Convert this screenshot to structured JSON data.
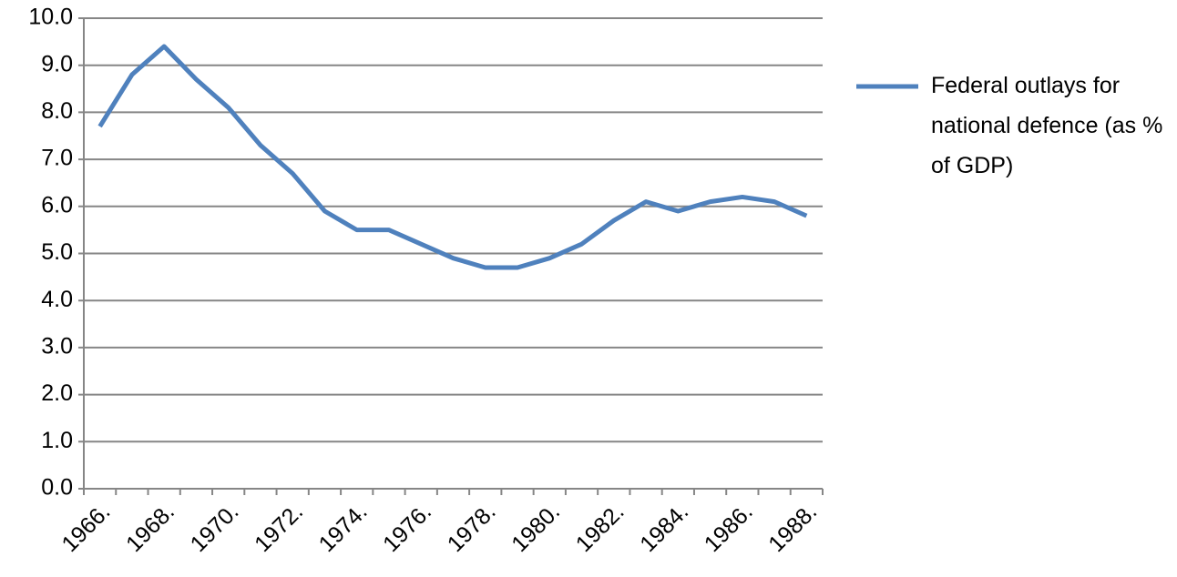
{
  "chart_data": {
    "type": "line",
    "categories": [
      "1966.",
      null,
      "1968.",
      null,
      "1970.",
      null,
      "1972.",
      null,
      "1974.",
      null,
      "1976.",
      null,
      "1978.",
      null,
      "1980.",
      null,
      "1982.",
      null,
      "1984.",
      null,
      "1986.",
      null,
      "1988."
    ],
    "series": [
      {
        "name": "Federal outlays for national defence (as % of GDP)",
        "color": "#4f81bd",
        "values": [
          7.7,
          8.8,
          9.4,
          8.7,
          8.1,
          7.3,
          6.7,
          5.9,
          5.5,
          5.5,
          5.2,
          4.9,
          4.7,
          4.7,
          4.9,
          5.2,
          5.7,
          6.1,
          5.9,
          6.1,
          6.2,
          6.1,
          5.8
        ]
      }
    ],
    "ylim": [
      0,
      10
    ],
    "yticks": [
      {
        "value": 0,
        "label": "0.0"
      },
      {
        "value": 1,
        "label": "1.0"
      },
      {
        "value": 2,
        "label": "2.0"
      },
      {
        "value": 3,
        "label": "3.0"
      },
      {
        "value": 4,
        "label": "4.0"
      },
      {
        "value": 5,
        "label": "5.0"
      },
      {
        "value": 6,
        "label": "6.0"
      },
      {
        "value": 7,
        "label": "7.0"
      },
      {
        "value": 8,
        "label": "8.0"
      },
      {
        "value": 9,
        "label": "9.0"
      },
      {
        "value": 10,
        "label": "10.0"
      }
    ],
    "grid": true,
    "legend": "right"
  }
}
